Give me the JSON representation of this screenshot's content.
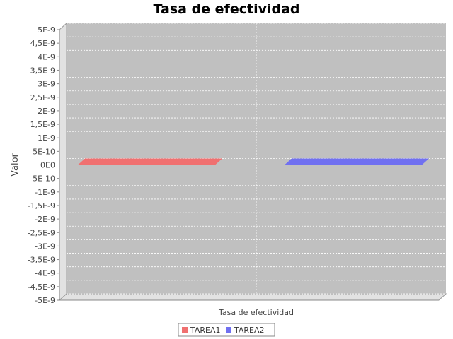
{
  "chart_data": {
    "type": "bar",
    "title": "Tasa de efectividad",
    "xlabel": "Tasa de efectividad",
    "ylabel": "Valor",
    "categories": [
      "Tasa de efectividad"
    ],
    "series": [
      {
        "name": "TAREA1",
        "values": [
          0
        ],
        "color": "#f07070"
      },
      {
        "name": "TAREA2",
        "values": [
          0
        ],
        "color": "#7070f0"
      }
    ],
    "ylim": [
      -5e-09,
      5e-09
    ],
    "yticks": [
      {
        "value": 5e-09,
        "label": "5E-9"
      },
      {
        "value": 4.5e-09,
        "label": "4,5E-9"
      },
      {
        "value": 4e-09,
        "label": "4E-9"
      },
      {
        "value": 3.5e-09,
        "label": "3,5E-9"
      },
      {
        "value": 3e-09,
        "label": "3E-9"
      },
      {
        "value": 2.5e-09,
        "label": "2,5E-9"
      },
      {
        "value": 2e-09,
        "label": "2E-9"
      },
      {
        "value": 1.5e-09,
        "label": "1,5E-9"
      },
      {
        "value": 1e-09,
        "label": "1E-9"
      },
      {
        "value": 5e-10,
        "label": "5E-10"
      },
      {
        "value": 0,
        "label": "0E0"
      },
      {
        "value": -5e-10,
        "label": "-5E-10"
      },
      {
        "value": -1e-09,
        "label": "-1E-9"
      },
      {
        "value": -1.5e-09,
        "label": "-1,5E-9"
      },
      {
        "value": -2e-09,
        "label": "-2E-9"
      },
      {
        "value": -2.5e-09,
        "label": "-2,5E-9"
      },
      {
        "value": -3e-09,
        "label": "-3E-9"
      },
      {
        "value": -3.5e-09,
        "label": "-3,5E-9"
      },
      {
        "value": -4e-09,
        "label": "-4E-9"
      },
      {
        "value": -4.5e-09,
        "label": "-4,5E-9"
      },
      {
        "value": -5e-09,
        "label": "-5E-9"
      }
    ],
    "grid": true,
    "legend_position": "bottom",
    "style": "3d",
    "plot_background": "#c0c0c0"
  }
}
